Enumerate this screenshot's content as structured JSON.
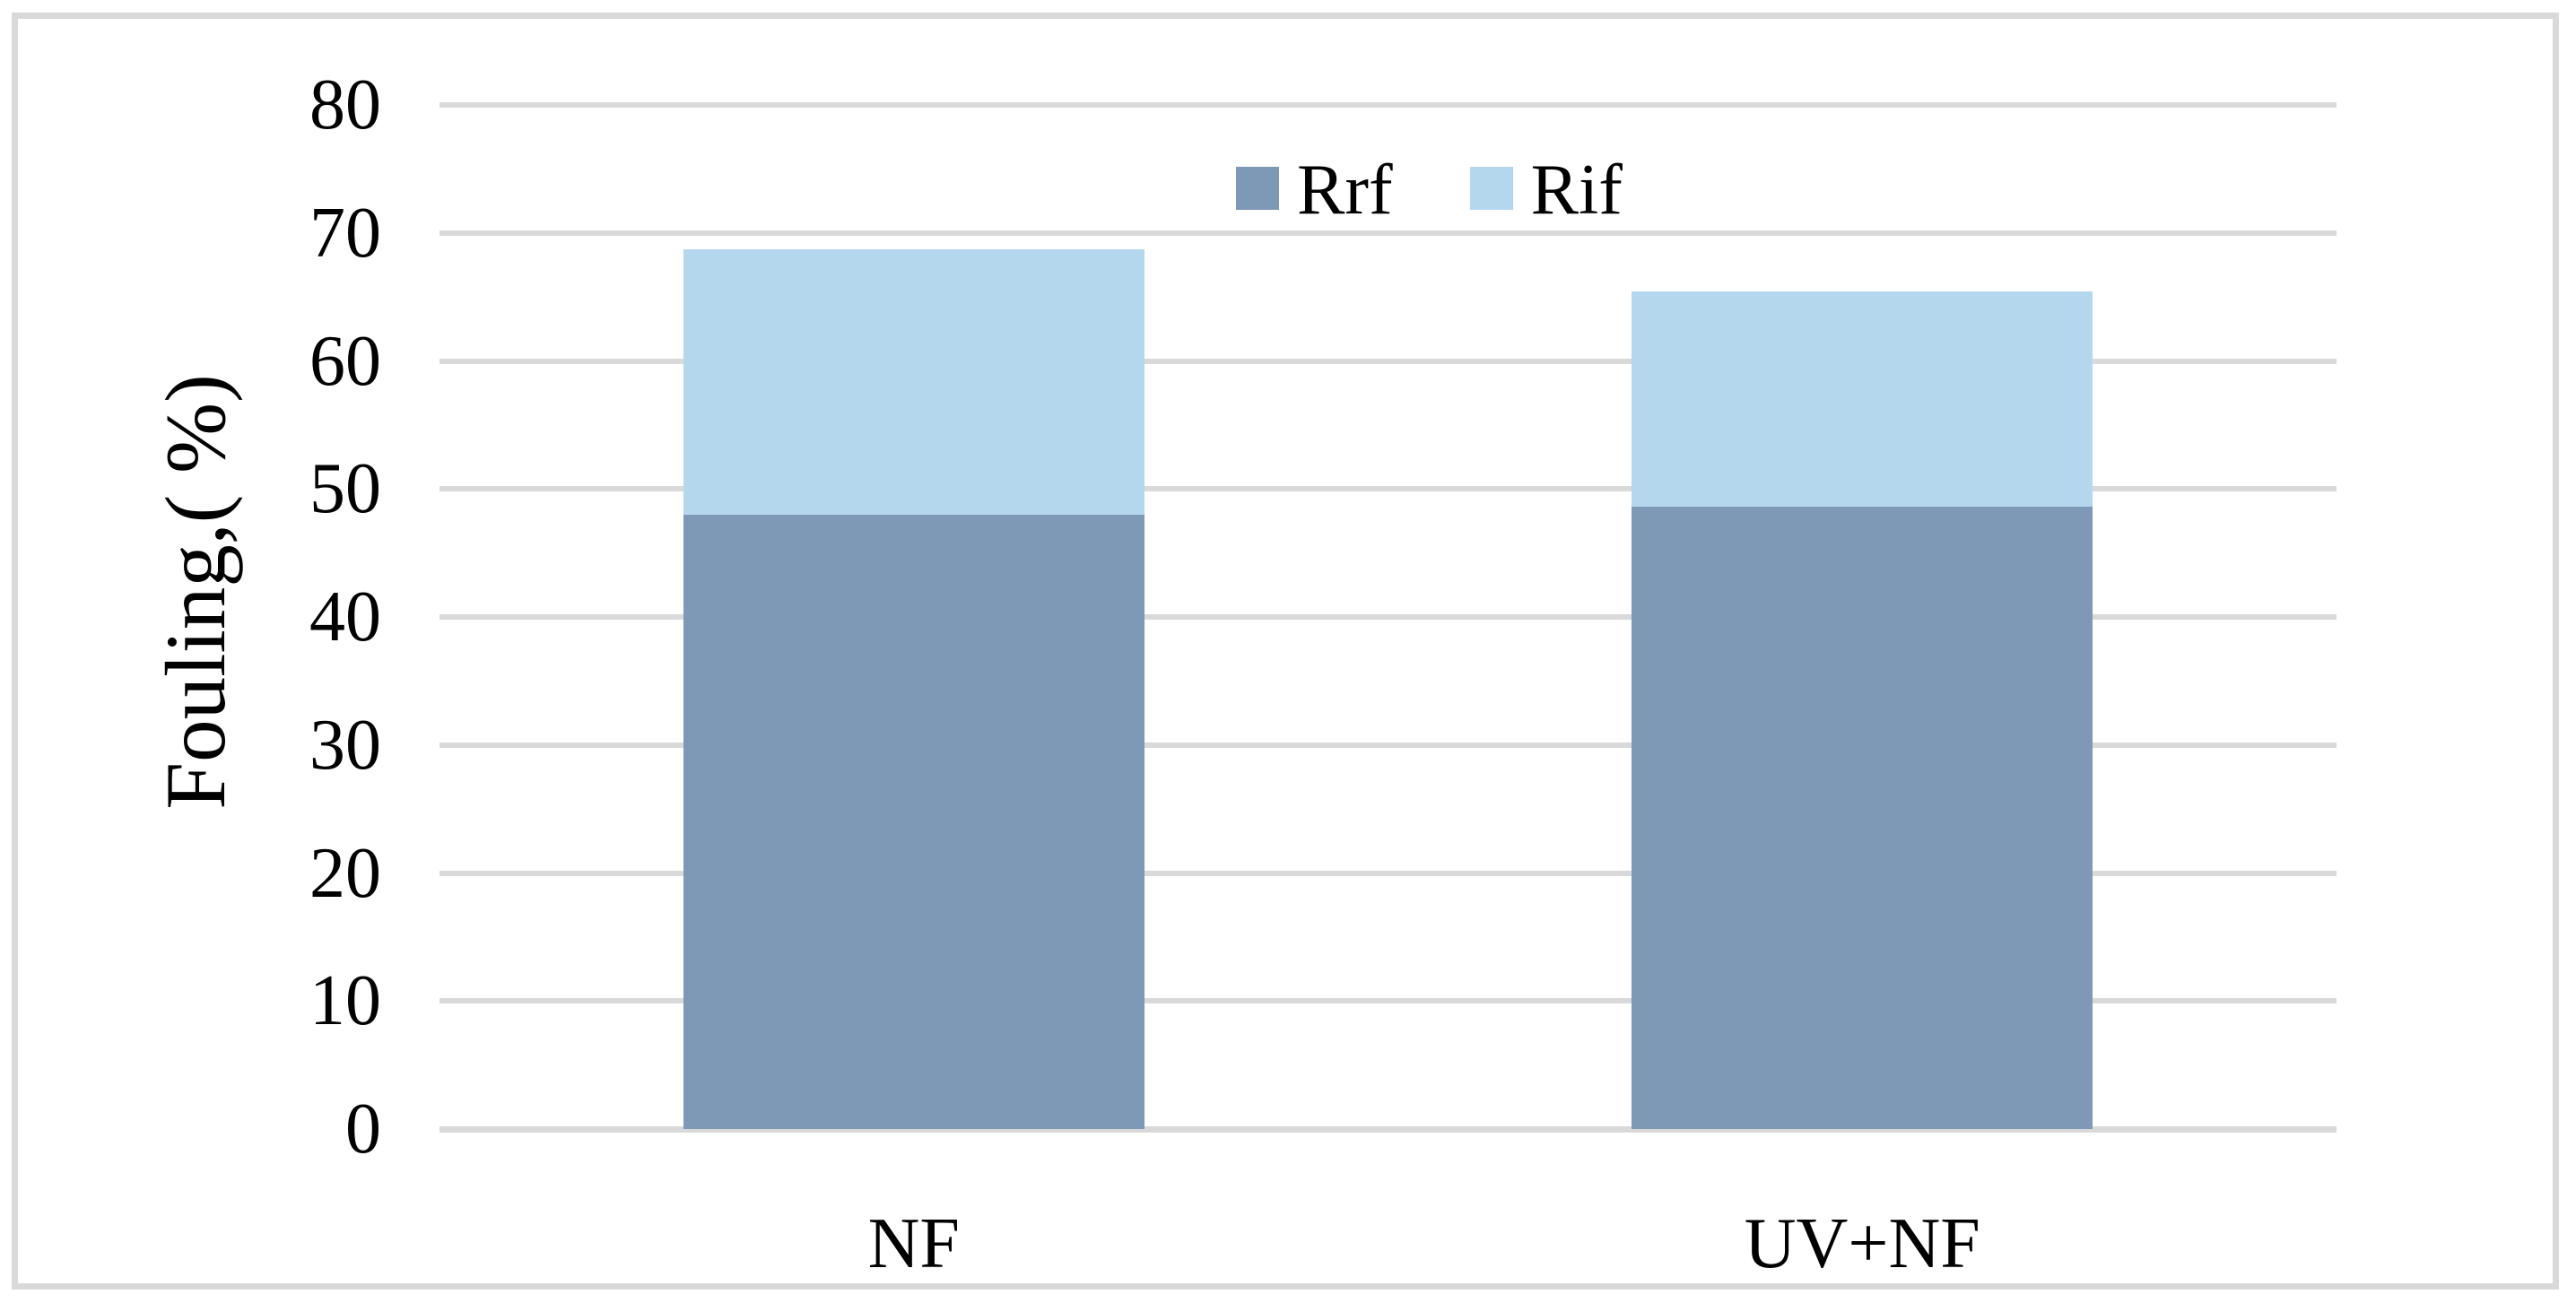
{
  "figure": {
    "background_color": "#FFFFFF",
    "border_color": "#D9D9D9"
  },
  "chart_data": {
    "type": "bar",
    "stacked": true,
    "title": "",
    "xlabel": "",
    "ylabel": "Fouling,( %)",
    "categories": [
      "NF",
      "UV+NF"
    ],
    "series": [
      {
        "name": "Rrf",
        "color": "#7D99B5",
        "values": [
          48.0,
          48.6
        ]
      },
      {
        "name": "Rif",
        "color": "#B5D7EE",
        "values": [
          20.7,
          16.8
        ]
      }
    ],
    "stack_totals": [
      68.7,
      65.4
    ],
    "ylim": [
      0,
      80
    ],
    "yticks": [
      0,
      10,
      20,
      30,
      40,
      50,
      60,
      70,
      80
    ],
    "grid": "horizontal",
    "gridline_color": "#D9D9D9",
    "axis_line_color": "#D9D9D9",
    "legend_position": "top-center",
    "legend": [
      "Rrf",
      "Rif"
    ],
    "text_color": "#000000"
  }
}
